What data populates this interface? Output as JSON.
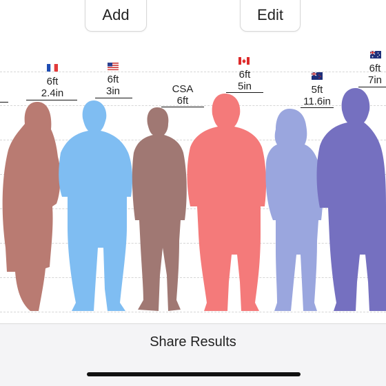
{
  "toolbar": {
    "add_label": "Add",
    "edit_label": "Edit"
  },
  "people": [
    {
      "name": "",
      "height_line1": "6ft",
      "height_line2": "2.4in",
      "flag": "france-flag-icon",
      "color": "#b97b72"
    },
    {
      "name": "",
      "height_line1": "6ft",
      "height_line2": "3in",
      "flag": "usa-flag-icon",
      "color": "#7fbdf2"
    },
    {
      "name": "CSA",
      "height_line1": "6ft",
      "height_line2": "",
      "flag": "",
      "color": "#a07873"
    },
    {
      "name": "",
      "height_line1": "6ft",
      "height_line2": "5in",
      "flag": "canada-flag-icon",
      "color": "#f47a7a"
    },
    {
      "name": "",
      "height_line1": "5ft",
      "height_line2": "11.6in",
      "flag": "new-zealand-flag-icon",
      "color": "#9aa6de"
    },
    {
      "name": "",
      "height_line1": "6ft",
      "height_line2": "7in",
      "flag": "australia-flag-icon",
      "color": "#7570c0"
    }
  ],
  "footer": {
    "share_label": "Share Results"
  }
}
